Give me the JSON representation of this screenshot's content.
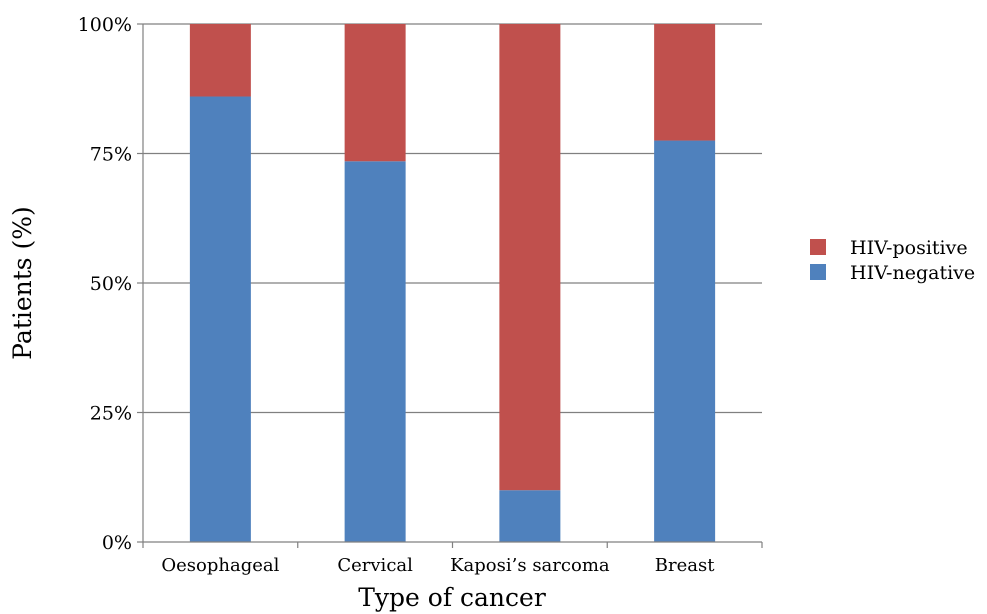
{
  "chart_data": {
    "type": "bar",
    "stacked": true,
    "normalized": true,
    "categories": [
      "Oesophageal",
      "Cervical",
      "Kaposi’s sarcoma",
      "Breast"
    ],
    "series": [
      {
        "name": "HIV-negative",
        "color": "#4f81bd",
        "values": [
          86,
          73.5,
          10,
          77.5
        ]
      },
      {
        "name": "HIV-positive",
        "color": "#c0504d",
        "values": [
          14,
          26.5,
          90,
          22.5
        ]
      }
    ],
    "ylim": [
      0,
      100
    ],
    "yticks": [
      "0%",
      "25%",
      "50%",
      "75%",
      "100%"
    ],
    "ytick_values": [
      0,
      25,
      50,
      75,
      100
    ],
    "xlabel": "Type of cancer",
    "ylabel": "Patients (%)",
    "grid": true,
    "legend": {
      "position": "right",
      "order": [
        "HIV-positive",
        "HIV-negative"
      ]
    }
  }
}
